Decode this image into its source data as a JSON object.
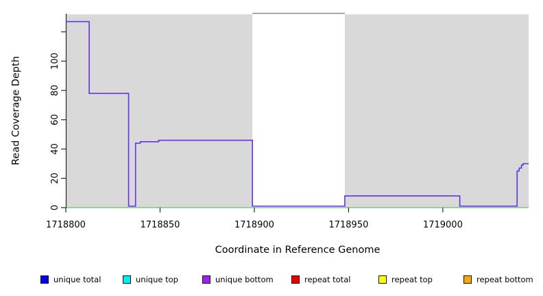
{
  "figure": {
    "x_axis_title": "Coordinate in Reference Genome",
    "y_axis_title": "Read Coverage Depth"
  },
  "chart_data": {
    "type": "line",
    "subtype": "step-after",
    "title": "",
    "xlabel": "Coordinate in Reference Genome",
    "ylabel": "Read Coverage Depth",
    "xlim": [
      1718800,
      1719045.5
    ],
    "ylim": [
      0,
      132.4
    ],
    "grid": false,
    "axis_color": "#262626",
    "x_ticks": [
      {
        "value": 1718800,
        "label": "1718800"
      },
      {
        "value": 1718850,
        "label": "1718850"
      },
      {
        "value": 1718900,
        "label": "1718900"
      },
      {
        "value": 1718950,
        "label": "1718950"
      },
      {
        "value": 1719000,
        "label": "1719000"
      }
    ],
    "y_ticks": [
      {
        "value": 0,
        "label": "0"
      },
      {
        "value": 20,
        "label": "20"
      },
      {
        "value": 40,
        "label": "40"
      },
      {
        "value": 60,
        "label": "60"
      },
      {
        "value": 80,
        "label": "80"
      },
      {
        "value": 100,
        "label": "100"
      },
      {
        "value": 120,
        "label": ""
      }
    ],
    "background_regions": [
      {
        "name": "covered-region-left",
        "x0": 1718800,
        "x1": 1718899,
        "color": "#d9d9d9"
      },
      {
        "name": "covered-region-right",
        "x0": 1718948,
        "x1": 1719045.5,
        "color": "#d9d9d9"
      }
    ],
    "gap_region": {
      "x0": 1718899,
      "x1": 1718948,
      "top_line_color": "#878787"
    },
    "zero_line_color": "#5ec75e",
    "series": [
      {
        "name": "unique bottom coverage",
        "color": "#6231e8",
        "points": [
          [
            1718800,
            127
          ],
          [
            1718812.4,
            78
          ],
          [
            1718833.3,
            1
          ],
          [
            1718837,
            44
          ],
          [
            1718839.5,
            45
          ],
          [
            1718849.3,
            46
          ],
          [
            1718899,
            1
          ],
          [
            1718948,
            8
          ],
          [
            1719009,
            1
          ],
          [
            1719039.4,
            25
          ],
          [
            1719040.5,
            27
          ],
          [
            1719041.7,
            29
          ],
          [
            1719042.5,
            30
          ],
          [
            1719045.5,
            30
          ]
        ]
      }
    ],
    "legend": {
      "position": "bottom",
      "entries": [
        {
          "label": "unique total",
          "color": "#0000ee"
        },
        {
          "label": "unique top",
          "color": "#00eeee"
        },
        {
          "label": "unique bottom",
          "color": "#a020f0"
        },
        {
          "label": "repeat total",
          "color": "#ee0000"
        },
        {
          "label": "repeat top",
          "color": "#ffff00"
        },
        {
          "label": "repeat bottom",
          "color": "#ffa500"
        }
      ]
    }
  }
}
